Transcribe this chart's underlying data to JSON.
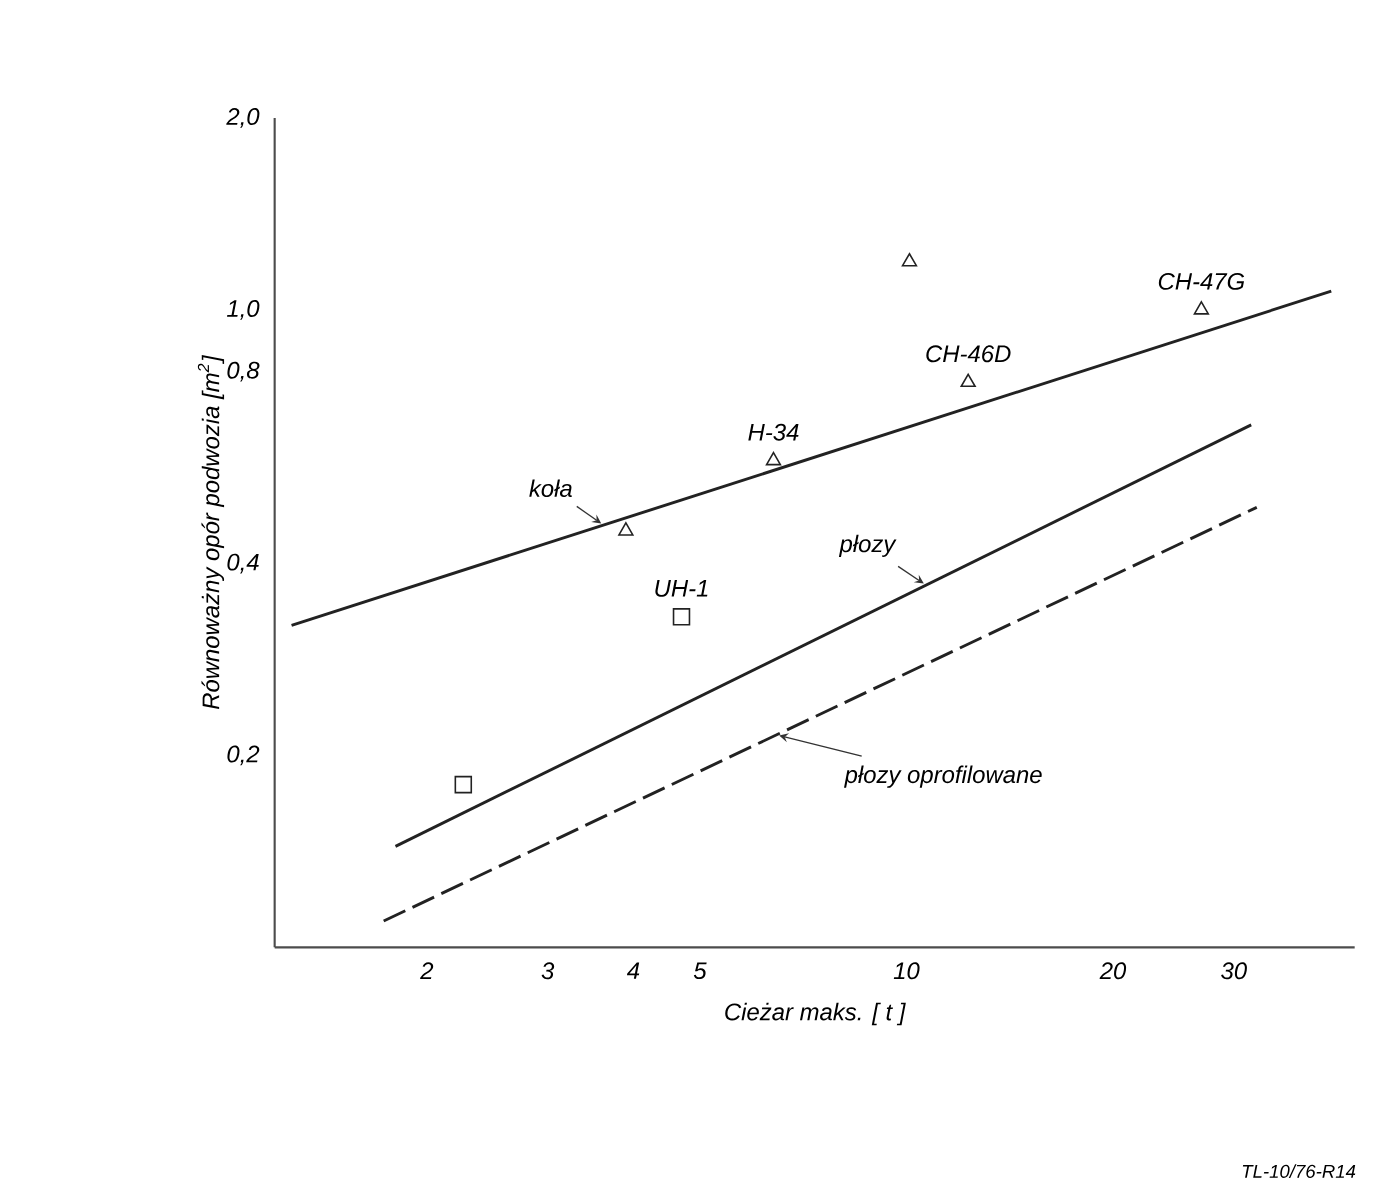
{
  "chart_data": {
    "type": "line",
    "xlabel": "Cieżar maks. [ t ]",
    "ylabel": "Równoważny opór podwozia [m$^{2}$]",
    "log": "xy",
    "xlim": [
      1.2,
      45
    ],
    "ylim": [
      0.1,
      2.0
    ],
    "xticks": [
      2,
      3,
      4,
      5,
      10,
      20,
      30
    ],
    "yticks": [
      {
        "value": 0.2,
        "label": "0,2"
      },
      {
        "value": 0.4,
        "label": "0,4"
      },
      {
        "value": 0.8,
        "label": "0,8"
      },
      {
        "value": 1.0,
        "label": "1,0"
      },
      {
        "value": 2.0,
        "label": "2,0"
      }
    ],
    "series": [
      {
        "name": "koła",
        "color": "#222222",
        "line_style": "solid",
        "x": [
          1.27,
          41.6
        ],
        "values": [
          0.32,
          1.07
        ]
      },
      {
        "name": "płozy",
        "color": "#222222",
        "line_style": "solid",
        "x": [
          1.8,
          31.8
        ],
        "values": [
          0.144,
          0.66
        ]
      },
      {
        "name": "płozy oprofilowane",
        "color": "#222222",
        "line_style": "dashed",
        "x": [
          1.73,
          32.4
        ],
        "values": [
          0.11,
          0.49
        ]
      },
      {
        "type": "scatter",
        "marker": "triangle",
        "color": "#222222",
        "x": [
          3.9,
          6.4,
          12.3,
          10.1,
          26.9
        ],
        "values": [
          0.45,
          0.58,
          0.77,
          1.19,
          1.0
        ]
      },
      {
        "type": "scatter",
        "marker": "square",
        "color": "#222222",
        "x": [
          4.7,
          2.26
        ],
        "values": [
          0.33,
          0.18
        ]
      }
    ],
    "annotations": [
      {
        "text": "H-34",
        "x": 6.4,
        "y": 0.58
      },
      {
        "text": "CH-46D",
        "x": 12.3,
        "y": 0.77
      },
      {
        "text": "CH-47G",
        "x": 26.9,
        "y": 1.0
      },
      {
        "text": "UH-1",
        "x": 4.7,
        "y": 0.33
      },
      "TL-10/76-R14"
    ]
  }
}
